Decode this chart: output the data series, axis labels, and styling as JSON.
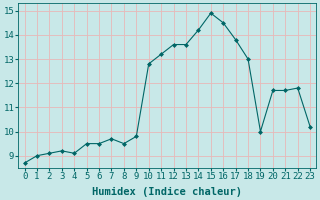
{
  "x": [
    0,
    1,
    2,
    3,
    4,
    5,
    6,
    7,
    8,
    9,
    10,
    11,
    12,
    13,
    14,
    15,
    16,
    17,
    18,
    19,
    20,
    21,
    22,
    23
  ],
  "y": [
    8.7,
    9.0,
    9.1,
    9.2,
    9.1,
    9.5,
    9.5,
    9.7,
    9.5,
    9.8,
    12.8,
    13.2,
    13.6,
    13.6,
    14.2,
    14.9,
    14.5,
    13.8,
    13.0,
    10.0,
    11.7,
    11.7,
    11.8,
    10.2
  ],
  "line_color": "#006666",
  "marker": "D",
  "marker_size": 2.0,
  "bg_color": "#c8e8e8",
  "grid_color": "#e8b8b8",
  "tick_color": "#006666",
  "xlabel": "Humidex (Indice chaleur)",
  "xlim": [
    -0.5,
    23.5
  ],
  "ylim": [
    8.5,
    15.3
  ],
  "yticks": [
    9,
    10,
    11,
    12,
    13,
    14,
    15
  ],
  "xticks": [
    0,
    1,
    2,
    3,
    4,
    5,
    6,
    7,
    8,
    9,
    10,
    11,
    12,
    13,
    14,
    15,
    16,
    17,
    18,
    19,
    20,
    21,
    22,
    23
  ],
  "xlabel_fontsize": 7.5,
  "tick_fontsize": 6.5
}
